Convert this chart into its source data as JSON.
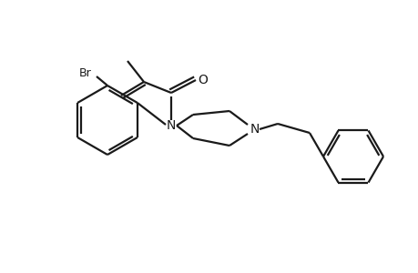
{
  "bg_color": "#ffffff",
  "line_color": "#1a1a1a",
  "bond_width": 1.6,
  "figsize": [
    4.6,
    3.0
  ],
  "dpi": 100,
  "Br_label": "Br",
  "N1_label": "N",
  "N2_label": "N",
  "O_label": "O"
}
